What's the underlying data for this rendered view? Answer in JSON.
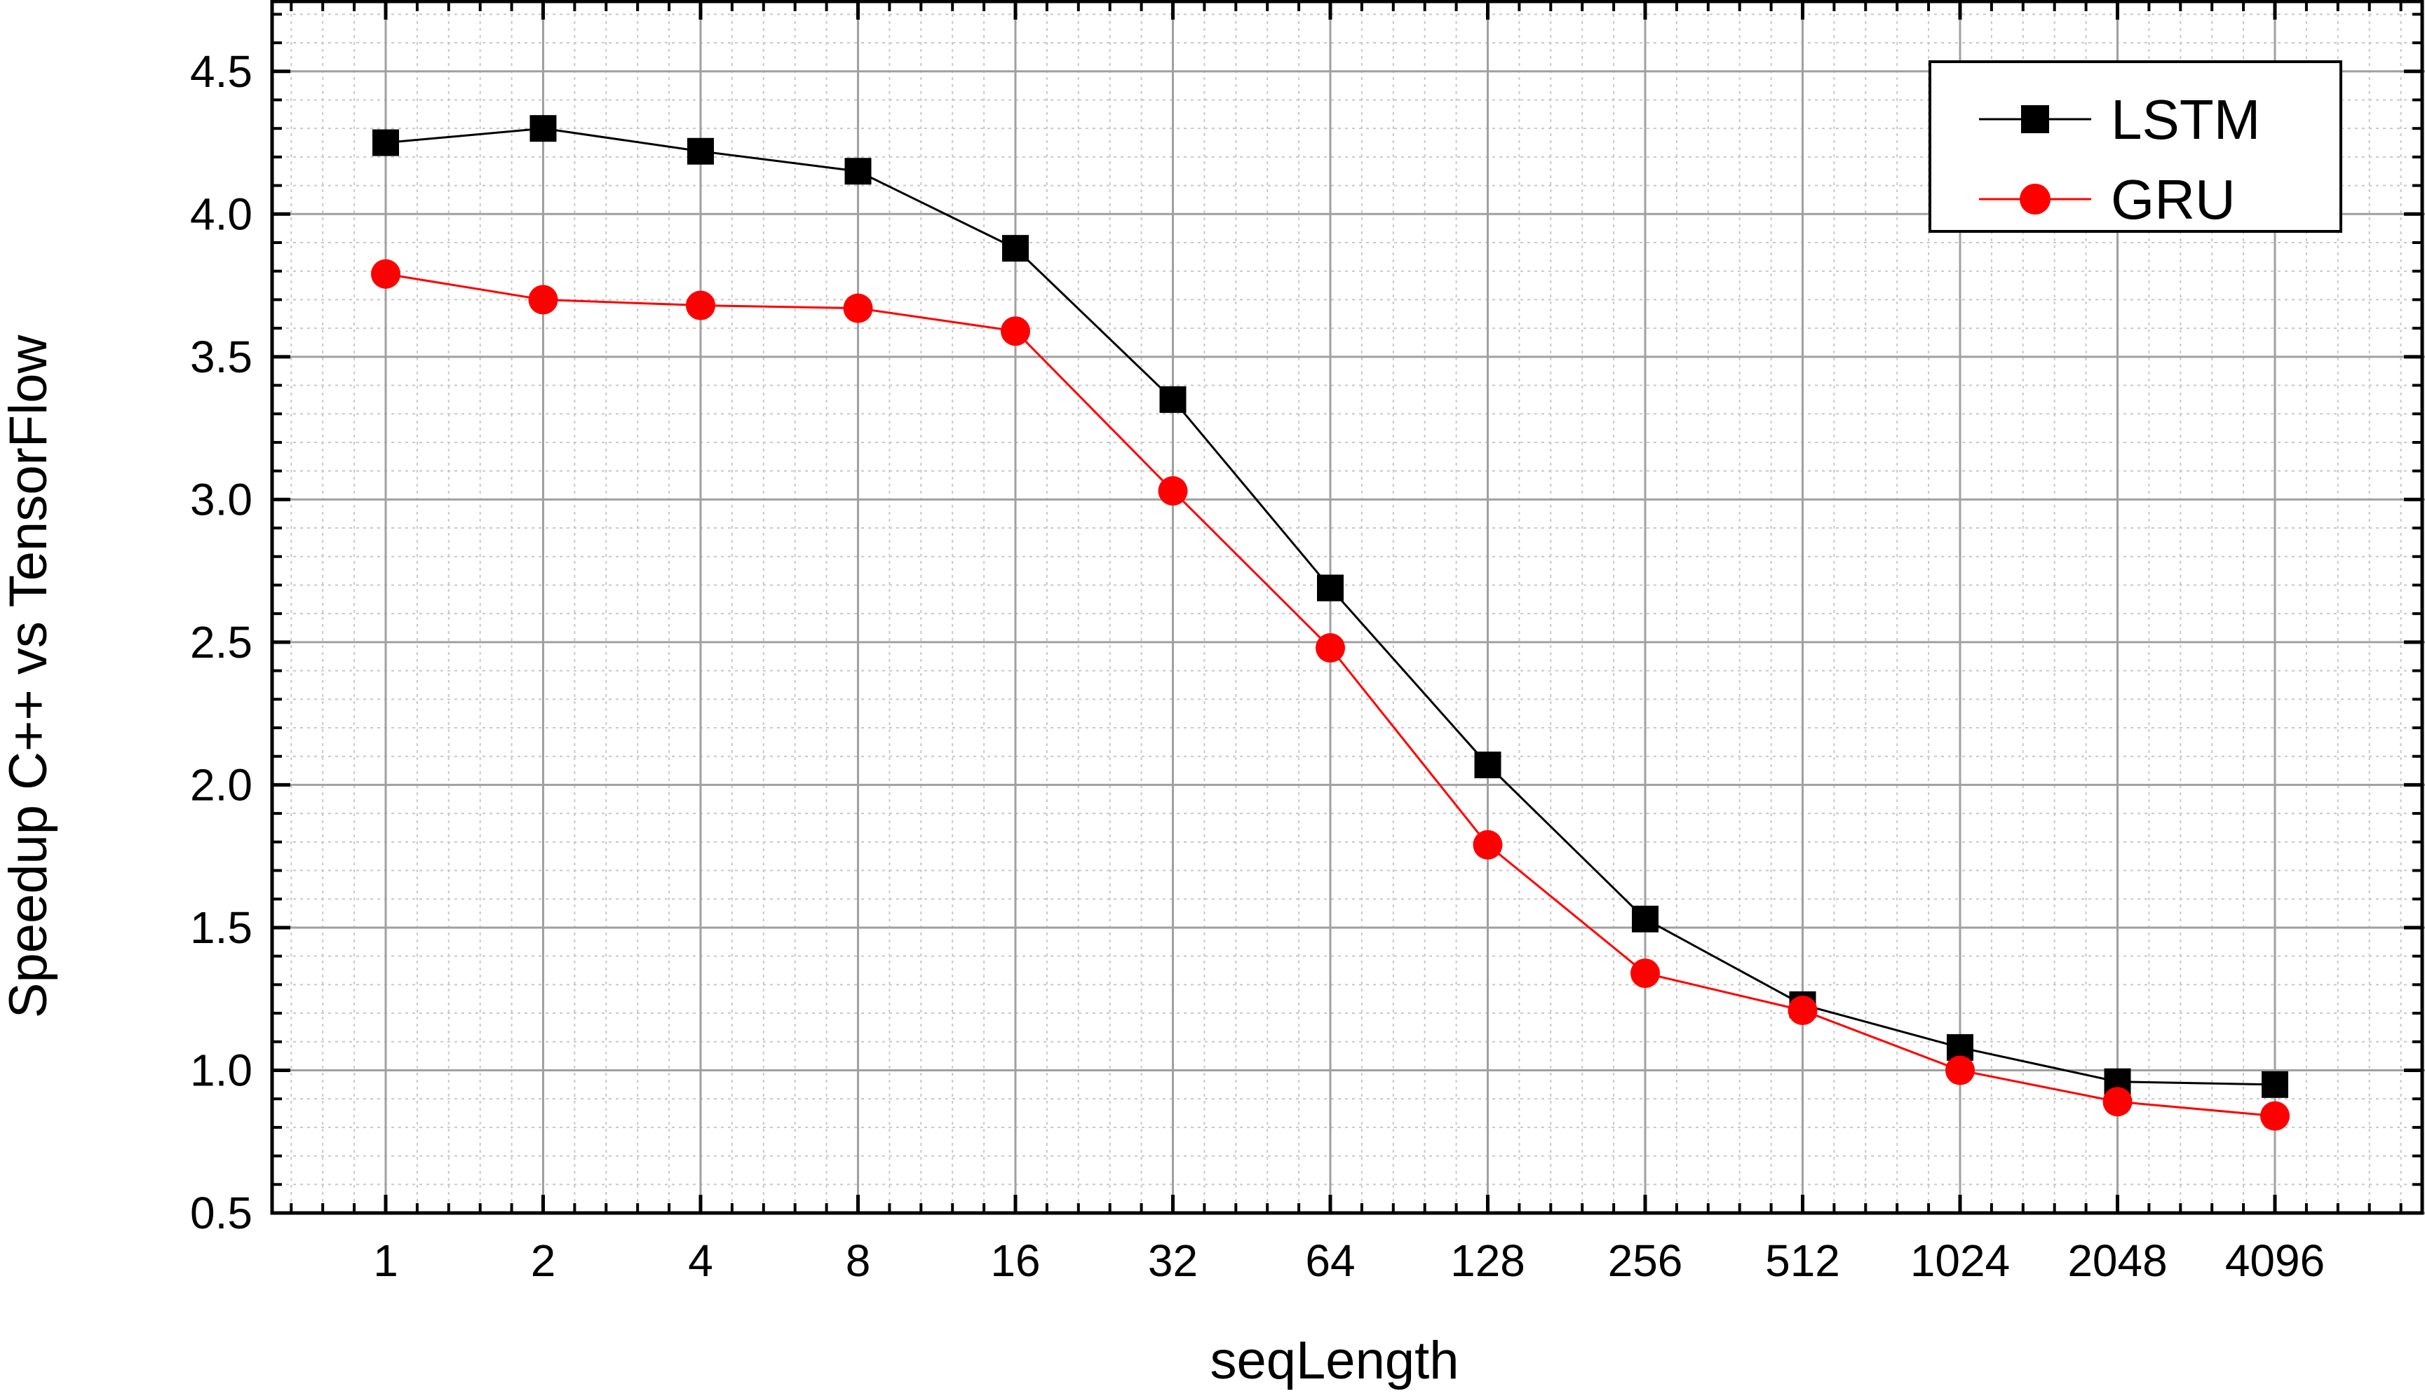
{
  "chart_data": {
    "type": "line",
    "title": "",
    "xlabel": "seqLength",
    "ylabel": "Speedup C++ vs TensorFlow",
    "x_scale": "log2",
    "categories": [
      "1",
      "2",
      "4",
      "8",
      "16",
      "32",
      "64",
      "128",
      "256",
      "512",
      "1024",
      "2048",
      "4096"
    ],
    "ylim": [
      0.5,
      4.75
    ],
    "yticks": [
      "0.5",
      "1.0",
      "1.5",
      "2.0",
      "2.5",
      "3.0",
      "3.5",
      "4.0",
      "4.5"
    ],
    "grid": true,
    "legend_position": "top-right",
    "series": [
      {
        "name": "LSTM",
        "color": "#000000",
        "marker": "square",
        "values": [
          4.25,
          4.3,
          4.22,
          4.15,
          3.88,
          3.35,
          2.69,
          2.07,
          1.53,
          1.23,
          1.08,
          0.96,
          0.95
        ]
      },
      {
        "name": "GRU",
        "color": "#ff0000",
        "marker": "circle",
        "values": [
          3.79,
          3.7,
          3.68,
          3.67,
          3.59,
          3.03,
          2.48,
          1.79,
          1.34,
          1.21,
          1.0,
          0.89,
          0.84
        ]
      }
    ]
  }
}
